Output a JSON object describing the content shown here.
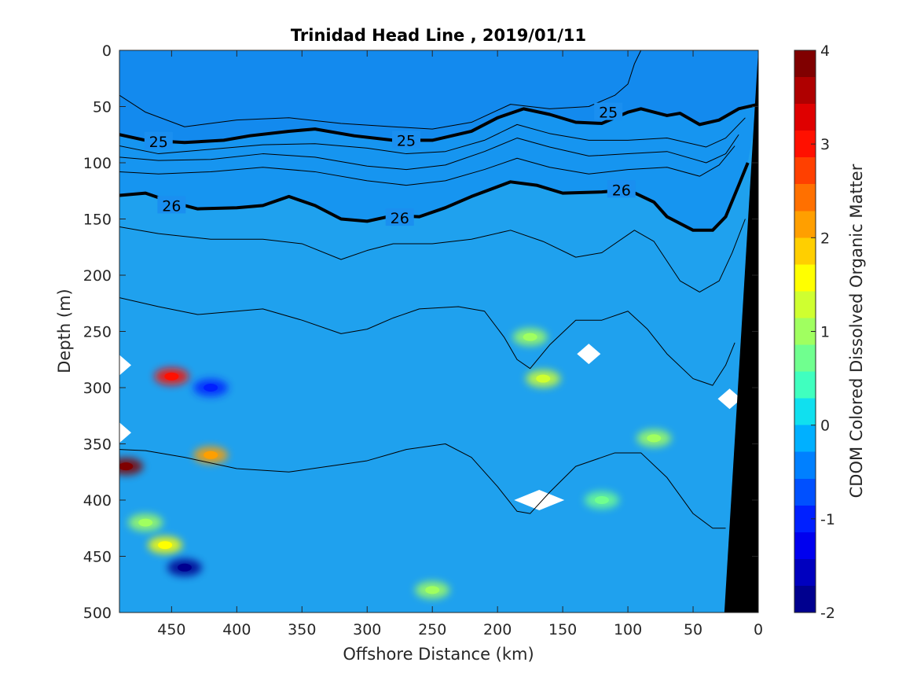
{
  "colors": {
    "ocean_base": "#1fa1ee",
    "bathymetry": "#000000",
    "missing": "#ffffff",
    "contour": "#000000"
  },
  "chart_data": {
    "type": "heatmap",
    "title": "Trinidad Head Line , 2019/01/11",
    "xlabel": "Offshore Distance (km)",
    "ylabel": "Depth (m)",
    "colorbar_label": "CDOM Colored Dissolved Organic Matter",
    "xlim": [
      490,
      0
    ],
    "ylim": [
      500,
      0
    ],
    "x_ticks": [
      "450",
      "400",
      "350",
      "300",
      "250",
      "200",
      "150",
      "100",
      "50",
      "0"
    ],
    "y_ticks": [
      "0",
      "50",
      "100",
      "150",
      "200",
      "250",
      "300",
      "350",
      "400",
      "450",
      "500"
    ],
    "colorbar_ticks": [
      "4",
      "3",
      "2",
      "1",
      "0",
      "-1",
      "-2"
    ],
    "clim": [
      -2,
      4
    ],
    "colormap": [
      "#00008f",
      "#0000bf",
      "#0000ef",
      "#0020ff",
      "#0050ff",
      "#0080ff",
      "#00b0ff",
      "#10e0ef",
      "#40ffbf",
      "#70ff8f",
      "#a0ff60",
      "#cfff30",
      "#ffff00",
      "#ffcf00",
      "#ff9f00",
      "#ff7000",
      "#ff4000",
      "#ff1000",
      "#df0000",
      "#af0000",
      "#800000"
    ],
    "contour_lines": [
      {
        "label": "",
        "bold": false,
        "points": [
          [
            490,
            40
          ],
          [
            470,
            55
          ],
          [
            440,
            68
          ],
          [
            400,
            62
          ],
          [
            360,
            60
          ],
          [
            320,
            65
          ],
          [
            280,
            68
          ],
          [
            250,
            70
          ],
          [
            220,
            64
          ],
          [
            190,
            48
          ],
          [
            160,
            52
          ],
          [
            130,
            50
          ],
          [
            110,
            40
          ],
          [
            100,
            30
          ],
          [
            95,
            12
          ],
          [
            90,
            0
          ]
        ]
      },
      {
        "label": "25",
        "bold": true,
        "label_at": [
          [
            460,
            81
          ],
          [
            270,
            80
          ],
          [
            115,
            55
          ]
        ],
        "points": [
          [
            490,
            75
          ],
          [
            470,
            80
          ],
          [
            440,
            82
          ],
          [
            410,
            80
          ],
          [
            390,
            76
          ],
          [
            360,
            72
          ],
          [
            340,
            70
          ],
          [
            310,
            76
          ],
          [
            280,
            80
          ],
          [
            250,
            80
          ],
          [
            220,
            72
          ],
          [
            200,
            60
          ],
          [
            180,
            52
          ],
          [
            160,
            57
          ],
          [
            140,
            64
          ],
          [
            120,
            65
          ],
          [
            100,
            55
          ],
          [
            90,
            52
          ],
          [
            70,
            58
          ],
          [
            60,
            56
          ],
          [
            45,
            66
          ],
          [
            30,
            62
          ],
          [
            15,
            52
          ],
          [
            0,
            48
          ]
        ]
      },
      {
        "label": "",
        "bold": false,
        "points": [
          [
            490,
            85
          ],
          [
            460,
            92
          ],
          [
            420,
            88
          ],
          [
            380,
            84
          ],
          [
            340,
            83
          ],
          [
            300,
            87
          ],
          [
            270,
            92
          ],
          [
            240,
            90
          ],
          [
            210,
            80
          ],
          [
            185,
            66
          ],
          [
            160,
            74
          ],
          [
            130,
            80
          ],
          [
            100,
            80
          ],
          [
            70,
            78
          ],
          [
            40,
            86
          ],
          [
            25,
            78
          ],
          [
            10,
            60
          ]
        ]
      },
      {
        "label": "",
        "bold": false,
        "points": [
          [
            490,
            95
          ],
          [
            460,
            98
          ],
          [
            420,
            97
          ],
          [
            380,
            92
          ],
          [
            340,
            95
          ],
          [
            300,
            103
          ],
          [
            270,
            106
          ],
          [
            240,
            102
          ],
          [
            210,
            90
          ],
          [
            185,
            78
          ],
          [
            160,
            86
          ],
          [
            130,
            94
          ],
          [
            100,
            92
          ],
          [
            70,
            90
          ],
          [
            40,
            100
          ],
          [
            25,
            92
          ],
          [
            15,
            75
          ]
        ]
      },
      {
        "label": "",
        "bold": false,
        "points": [
          [
            490,
            108
          ],
          [
            460,
            110
          ],
          [
            420,
            108
          ],
          [
            380,
            104
          ],
          [
            340,
            108
          ],
          [
            300,
            116
          ],
          [
            270,
            120
          ],
          [
            240,
            116
          ],
          [
            210,
            106
          ],
          [
            185,
            96
          ],
          [
            160,
            104
          ],
          [
            130,
            110
          ],
          [
            100,
            106
          ],
          [
            70,
            104
          ],
          [
            45,
            112
          ],
          [
            30,
            102
          ],
          [
            18,
            85
          ]
        ]
      },
      {
        "label": "26",
        "bold": true,
        "label_at": [
          [
            450,
            138
          ],
          [
            275,
            149
          ],
          [
            105,
            124
          ]
        ],
        "points": [
          [
            490,
            129
          ],
          [
            470,
            127
          ],
          [
            450,
            135
          ],
          [
            430,
            141
          ],
          [
            400,
            140
          ],
          [
            380,
            138
          ],
          [
            360,
            130
          ],
          [
            340,
            138
          ],
          [
            320,
            150
          ],
          [
            300,
            152
          ],
          [
            280,
            147
          ],
          [
            260,
            148
          ],
          [
            240,
            140
          ],
          [
            220,
            130
          ],
          [
            190,
            117
          ],
          [
            170,
            120
          ],
          [
            150,
            127
          ],
          [
            120,
            126
          ],
          [
            100,
            124
          ],
          [
            80,
            135
          ],
          [
            70,
            148
          ],
          [
            50,
            160
          ],
          [
            35,
            160
          ],
          [
            25,
            148
          ],
          [
            15,
            120
          ],
          [
            8,
            100
          ]
        ]
      },
      {
        "label": "",
        "bold": false,
        "points": [
          [
            490,
            157
          ],
          [
            460,
            163
          ],
          [
            420,
            168
          ],
          [
            380,
            168
          ],
          [
            350,
            172
          ],
          [
            320,
            186
          ],
          [
            300,
            178
          ],
          [
            280,
            172
          ],
          [
            250,
            172
          ],
          [
            220,
            168
          ],
          [
            190,
            160
          ],
          [
            165,
            170
          ],
          [
            140,
            184
          ],
          [
            120,
            180
          ],
          [
            95,
            160
          ],
          [
            80,
            170
          ],
          [
            60,
            205
          ],
          [
            45,
            215
          ],
          [
            30,
            205
          ],
          [
            20,
            180
          ],
          [
            10,
            150
          ]
        ]
      },
      {
        "label": "",
        "bold": false,
        "points": [
          [
            490,
            220
          ],
          [
            460,
            228
          ],
          [
            430,
            235
          ],
          [
            400,
            232
          ],
          [
            380,
            230
          ],
          [
            350,
            240
          ],
          [
            320,
            252
          ],
          [
            300,
            248
          ],
          [
            280,
            238
          ],
          [
            260,
            230
          ],
          [
            230,
            228
          ],
          [
            210,
            232
          ],
          [
            195,
            255
          ],
          [
            185,
            275
          ],
          [
            175,
            283
          ],
          [
            160,
            262
          ],
          [
            140,
            240
          ],
          [
            120,
            240
          ],
          [
            100,
            232
          ],
          [
            85,
            248
          ],
          [
            70,
            270
          ],
          [
            50,
            292
          ],
          [
            35,
            298
          ],
          [
            25,
            280
          ],
          [
            18,
            260
          ]
        ]
      },
      {
        "label": "",
        "bold": false,
        "points": [
          [
            490,
            355
          ],
          [
            470,
            356
          ],
          [
            440,
            362
          ],
          [
            400,
            372
          ],
          [
            360,
            375
          ],
          [
            330,
            370
          ],
          [
            300,
            365
          ],
          [
            270,
            355
          ],
          [
            240,
            350
          ],
          [
            220,
            362
          ],
          [
            200,
            388
          ],
          [
            185,
            410
          ],
          [
            175,
            412
          ],
          [
            160,
            393
          ],
          [
            140,
            370
          ],
          [
            110,
            358
          ],
          [
            90,
            358
          ],
          [
            70,
            380
          ],
          [
            50,
            412
          ],
          [
            35,
            425
          ],
          [
            25,
            425
          ]
        ]
      }
    ],
    "hotspots": [
      {
        "x": 485,
        "y": 370,
        "value": 4.0,
        "note": "red"
      },
      {
        "x": 450,
        "y": 290,
        "value": 3.0
      },
      {
        "x": 420,
        "y": 360,
        "value": 2.2
      },
      {
        "x": 455,
        "y": 440,
        "value": 1.5
      },
      {
        "x": 165,
        "y": 292,
        "value": 1.2
      },
      {
        "x": 175,
        "y": 255,
        "value": 1.0
      },
      {
        "x": 440,
        "y": 460,
        "value": -2.0
      },
      {
        "x": 420,
        "y": 300,
        "value": -1.2
      },
      {
        "x": 470,
        "y": 420,
        "value": 1.0
      },
      {
        "x": 250,
        "y": 480,
        "value": 0.9
      },
      {
        "x": 120,
        "y": 400,
        "value": 0.8
      },
      {
        "x": 80,
        "y": 345,
        "value": 0.9
      }
    ],
    "missing_data": [
      {
        "x": 490,
        "y": 280
      },
      {
        "x": 490,
        "y": 340
      },
      {
        "x": 130,
        "y": 270
      },
      {
        "x": 168,
        "y": 400
      },
      {
        "x": 22,
        "y": 310
      }
    ],
    "bathymetry_polygon": [
      [
        0,
        0
      ],
      [
        0,
        500
      ],
      [
        26,
        500
      ]
    ]
  }
}
